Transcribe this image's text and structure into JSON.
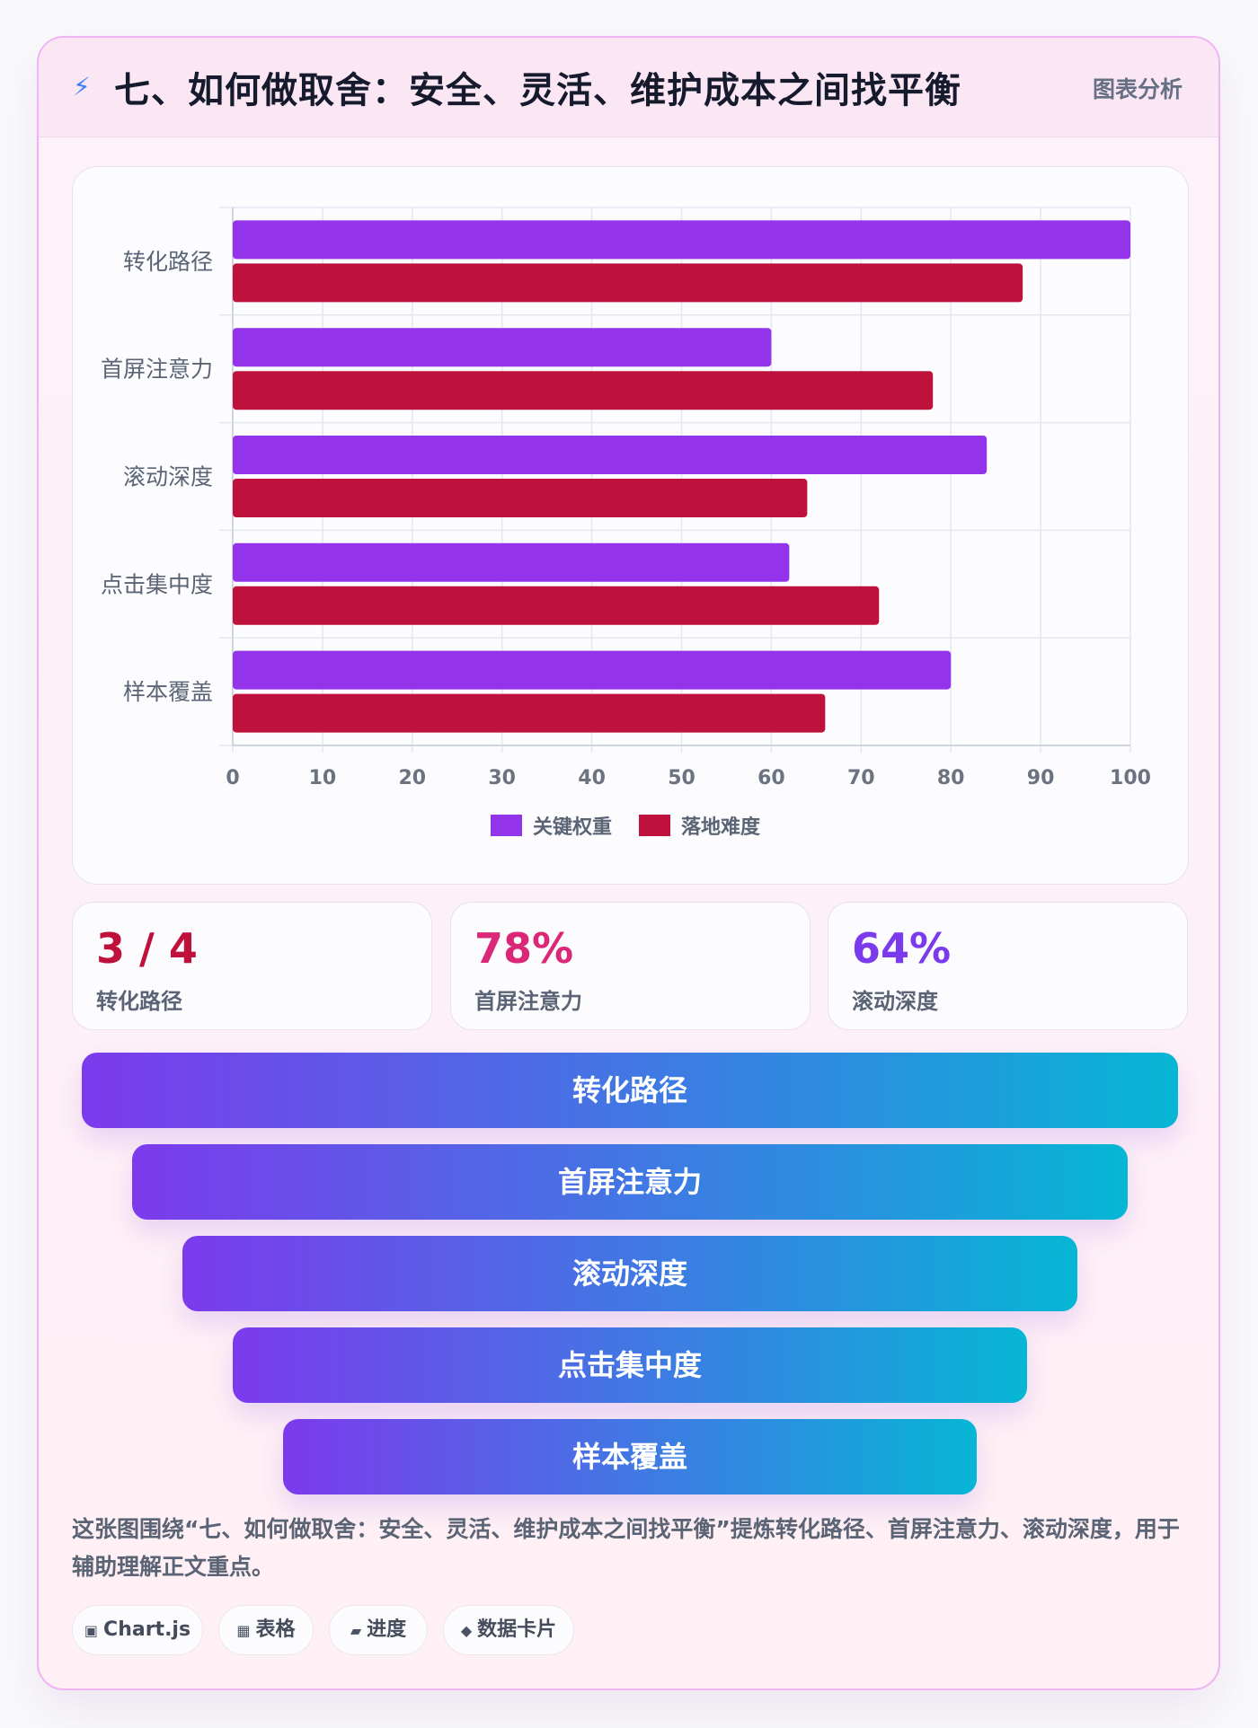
{
  "header": {
    "icon": "lightning-icon",
    "title": "七、如何做取舍：安全、灵活、维护成本之间找平衡",
    "tag": "图表分析"
  },
  "chart_data": {
    "type": "bar",
    "orientation": "horizontal",
    "categories": [
      "转化路径",
      "首屏注意力",
      "滚动深度",
      "点击集中度",
      "样本覆盖"
    ],
    "series": [
      {
        "name": "关键权重",
        "color": "#9333ea",
        "values": [
          100,
          60,
          84,
          62,
          80
        ]
      },
      {
        "name": "落地难度",
        "color": "#be123c",
        "values": [
          88,
          78,
          64,
          72,
          66
        ]
      }
    ],
    "xlim": [
      0,
      100
    ],
    "xticks": [
      0,
      10,
      20,
      30,
      40,
      50,
      60,
      70,
      80,
      90,
      100
    ],
    "grid": true,
    "legend": "bottom"
  },
  "stats": [
    {
      "value": "3 / 4",
      "label": "转化路径",
      "color": "#be123c"
    },
    {
      "value": "78%",
      "label": "首屏注意力",
      "color": "#db2777"
    },
    {
      "value": "64%",
      "label": "滚动深度",
      "color": "#7c3aed"
    }
  ],
  "funnel": [
    "转化路径",
    "首屏注意力",
    "滚动深度",
    "点击集中度",
    "样本覆盖"
  ],
  "description": "这张图围绕“七、如何做取舍：安全、灵活、维护成本之间找平衡”提炼转化路径、首屏注意力、滚动深度，用于辅助理解正文重点。",
  "chips": [
    {
      "icon": "▣",
      "label": "Chart.js"
    },
    {
      "icon": "▦",
      "label": "表格"
    },
    {
      "icon": "▰",
      "label": "进度"
    },
    {
      "icon": "◆",
      "label": "数据卡片"
    }
  ]
}
